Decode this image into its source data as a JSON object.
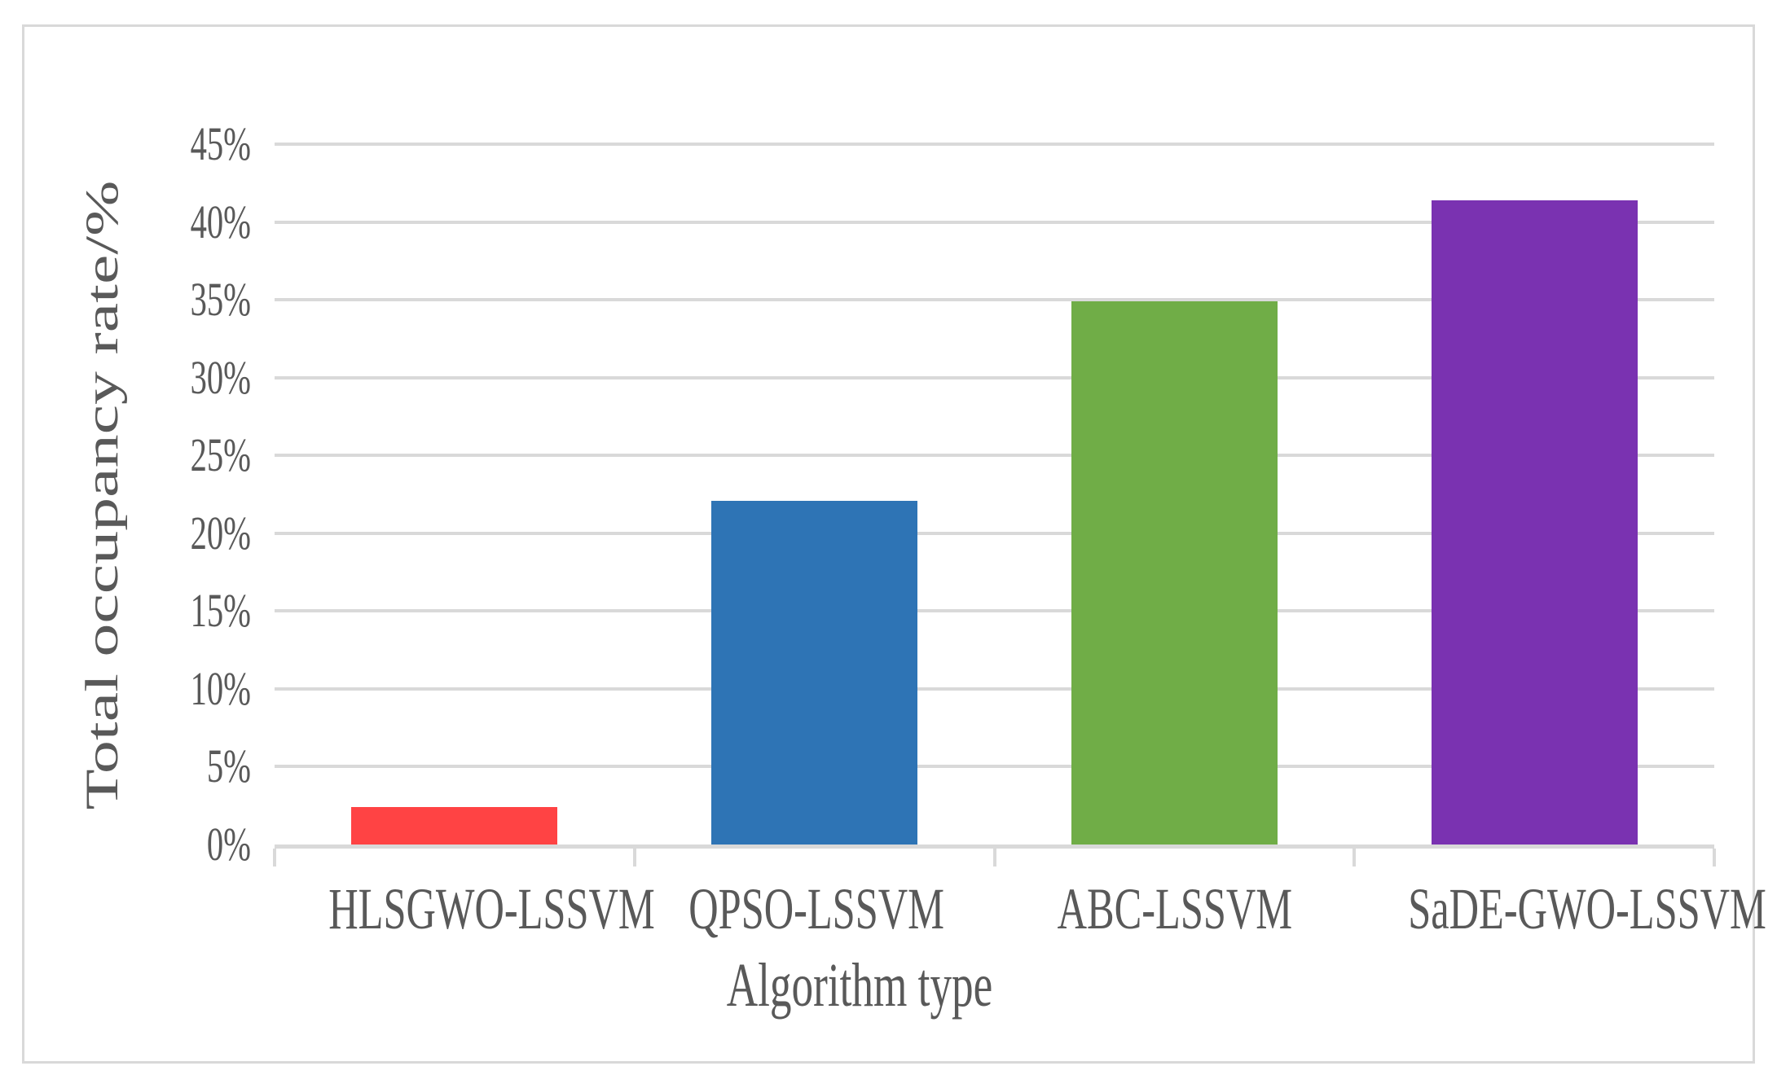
{
  "chart_data": {
    "type": "bar",
    "title": "",
    "categories": [
      "HLSGWO-LSSVM",
      "QPSO-LSSVM",
      "ABC-LSSVM",
      "SaDE-GWO-LSSVM"
    ],
    "values": [
      2.4,
      22.1,
      34.9,
      41.4
    ],
    "bar_colors": [
      "#FF4344",
      "#2E74B5",
      "#70AD47",
      "#7A32B1"
    ],
    "xlabel": "Algorithm type",
    "ylabel": "Total occupancy rate/%",
    "ylim": [
      0,
      45
    ],
    "ytick_step": 5,
    "ytick_labels": [
      "0%",
      "5%",
      "10%",
      "15%",
      "20%",
      "25%",
      "30%",
      "35%",
      "40%",
      "45%"
    ],
    "grid": true,
    "legend": false,
    "bar_width_fraction": 0.573
  },
  "colors": {
    "text": "#595959",
    "gridline": "#D9D9D9",
    "axis_line": "#D9D9D9",
    "frame_border": "#D9D9D9",
    "background": "#FFFFFF"
  }
}
